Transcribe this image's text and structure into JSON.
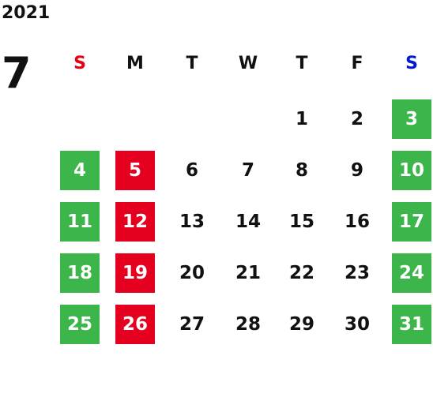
{
  "year": "2021",
  "month": "7",
  "weekdays": [
    "S",
    "M",
    "T",
    "W",
    "T",
    "F",
    "S"
  ],
  "weeks": [
    [
      null,
      null,
      null,
      null,
      "1",
      "2",
      "3"
    ],
    [
      "4",
      "5",
      "6",
      "7",
      "8",
      "9",
      "10"
    ],
    [
      "11",
      "12",
      "13",
      "14",
      "15",
      "16",
      "17"
    ],
    [
      "18",
      "19",
      "20",
      "21",
      "22",
      "23",
      "24"
    ],
    [
      "25",
      "26",
      "27",
      "28",
      "29",
      "30",
      "31"
    ]
  ]
}
